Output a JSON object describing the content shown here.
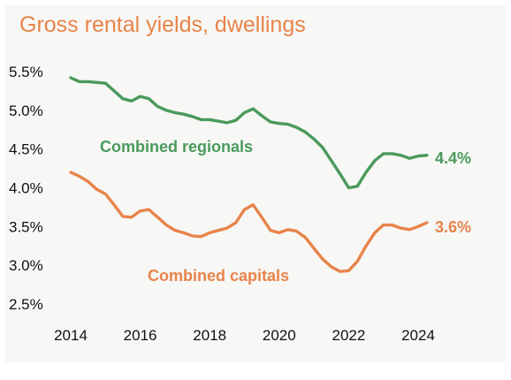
{
  "chart_data": {
    "type": "line",
    "title": "Gross rental yields, dwellings",
    "xlabel": "",
    "ylabel": "",
    "x_ticks": [
      "2014",
      "2016",
      "2018",
      "2020",
      "2022",
      "2024"
    ],
    "y_ticks": [
      "5.5%",
      "5.0%",
      "4.5%",
      "4.0%",
      "3.5%",
      "3.0%",
      "2.5%"
    ],
    "xlim": [
      2014,
      2025.3
    ],
    "ylim": [
      2.5,
      5.5
    ],
    "grid": false,
    "legend": "none",
    "series": [
      {
        "name": "Combined regionals",
        "color": "#4a9a5c",
        "end_label": "4.4%",
        "x": [
          2014.0,
          2014.25,
          2014.5,
          2014.75,
          2015.0,
          2015.25,
          2015.5,
          2015.75,
          2016.0,
          2016.25,
          2016.5,
          2016.75,
          2017.0,
          2017.25,
          2017.5,
          2017.75,
          2018.0,
          2018.25,
          2018.5,
          2018.75,
          2019.0,
          2019.25,
          2019.5,
          2019.75,
          2020.0,
          2020.25,
          2020.5,
          2020.75,
          2021.0,
          2021.25,
          2021.5,
          2021.75,
          2022.0,
          2022.25,
          2022.5,
          2022.75,
          2023.0,
          2023.25,
          2023.5,
          2023.75,
          2024.0,
          2024.25
        ],
        "values": [
          5.42,
          5.37,
          5.37,
          5.36,
          5.35,
          5.25,
          5.15,
          5.12,
          5.18,
          5.15,
          5.05,
          5.0,
          4.97,
          4.95,
          4.92,
          4.88,
          4.88,
          4.86,
          4.84,
          4.87,
          4.97,
          5.02,
          4.93,
          4.85,
          4.83,
          4.82,
          4.78,
          4.72,
          4.63,
          4.52,
          4.35,
          4.18,
          4.0,
          4.02,
          4.2,
          4.35,
          4.44,
          4.44,
          4.42,
          4.38,
          4.41,
          4.42
        ]
      },
      {
        "name": "Combined capitals",
        "color": "#e8844a",
        "end_label": "3.6%",
        "x": [
          2014.0,
          2014.25,
          2014.5,
          2014.75,
          2015.0,
          2015.25,
          2015.5,
          2015.75,
          2016.0,
          2016.25,
          2016.5,
          2016.75,
          2017.0,
          2017.25,
          2017.5,
          2017.75,
          2018.0,
          2018.25,
          2018.5,
          2018.75,
          2019.0,
          2019.25,
          2019.5,
          2019.75,
          2020.0,
          2020.25,
          2020.5,
          2020.75,
          2021.0,
          2021.25,
          2021.5,
          2021.75,
          2022.0,
          2022.25,
          2022.5,
          2022.75,
          2023.0,
          2023.25,
          2023.5,
          2023.75,
          2024.0,
          2024.25
        ],
        "values": [
          4.2,
          4.15,
          4.08,
          3.98,
          3.92,
          3.78,
          3.63,
          3.62,
          3.7,
          3.72,
          3.62,
          3.52,
          3.45,
          3.42,
          3.38,
          3.37,
          3.42,
          3.45,
          3.48,
          3.55,
          3.72,
          3.78,
          3.62,
          3.45,
          3.42,
          3.46,
          3.44,
          3.36,
          3.22,
          3.08,
          2.98,
          2.92,
          2.93,
          3.05,
          3.25,
          3.42,
          3.52,
          3.52,
          3.48,
          3.46,
          3.5,
          3.55
        ]
      }
    ]
  }
}
